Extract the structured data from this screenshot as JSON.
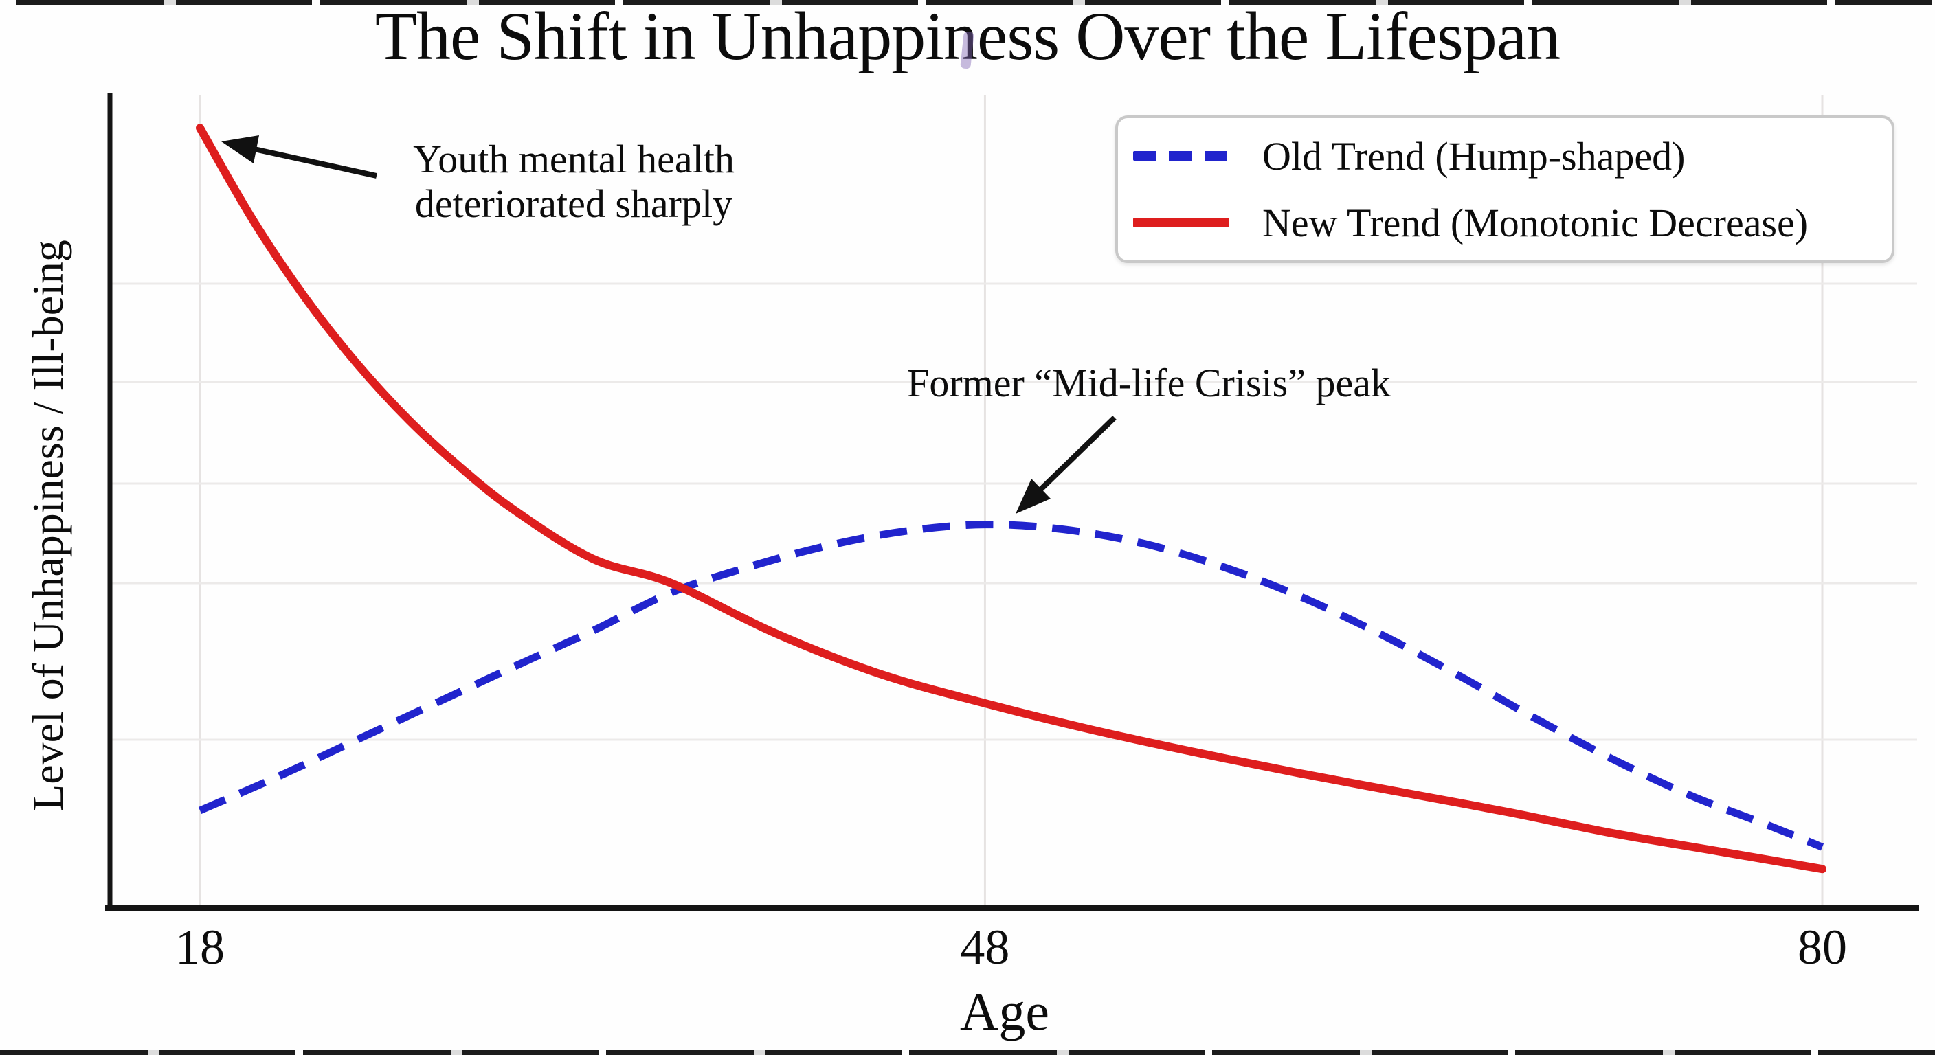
{
  "page": {
    "background": "#fefefe"
  },
  "axes": {
    "x_label": "Age",
    "y_label": "Level of Unhappiness / Ill-being"
  },
  "legend": {
    "items": [
      {
        "label": "Old Trend (Hump-shaped)",
        "color": "#2124cd",
        "line_style": "dashed"
      },
      {
        "label": "New Trend (Monotonic Decrease)",
        "color": "#de1e1e",
        "line_style": "solid"
      }
    ]
  },
  "annotations": [
    {
      "id": "youth",
      "lines": [
        "Youth mental health",
        "deteriorated sharply"
      ]
    },
    {
      "id": "midlife",
      "lines": [
        "Former “Mid-life Crisis” peak"
      ]
    }
  ],
  "chart_data": {
    "type": "line",
    "title": "The Shift in Unhappiness Over the Lifespan",
    "xlabel": "Age",
    "ylabel": "Level of Unhappiness / Ill-being",
    "x_ticks": [
      18,
      48,
      80
    ],
    "xlim": [
      18,
      80
    ],
    "ylim": [
      0,
      1
    ],
    "grid": true,
    "legend_position": "upper right",
    "series": [
      {
        "name": "Old Trend (Hump-shaped)",
        "color": "#2124cd",
        "style": "dashed",
        "points": [
          [
            18,
            0.12
          ],
          [
            21,
            0.162
          ],
          [
            24,
            0.207
          ],
          [
            27,
            0.252
          ],
          [
            30,
            0.297
          ],
          [
            33,
            0.341
          ],
          [
            36,
            0.388
          ],
          [
            39,
            0.42
          ],
          [
            42,
            0.446
          ],
          [
            45,
            0.464
          ],
          [
            48,
            0.472
          ],
          [
            51,
            0.466
          ],
          [
            54,
            0.449
          ],
          [
            57,
            0.421
          ],
          [
            60,
            0.384
          ],
          [
            63,
            0.339
          ],
          [
            66,
            0.288
          ],
          [
            69,
            0.234
          ],
          [
            72,
            0.183
          ],
          [
            75,
            0.138
          ],
          [
            78,
            0.101
          ],
          [
            80,
            0.075
          ]
        ]
      },
      {
        "name": "New Trend (Monotonic Decrease)",
        "color": "#de1e1e",
        "style": "solid",
        "points": [
          [
            18,
            0.96
          ],
          [
            20,
            0.848
          ],
          [
            22,
            0.752
          ],
          [
            24,
            0.67
          ],
          [
            26,
            0.6
          ],
          [
            28,
            0.541
          ],
          [
            30,
            0.49
          ],
          [
            33,
            0.43
          ],
          [
            36,
            0.4
          ],
          [
            40,
            0.338
          ],
          [
            44,
            0.288
          ],
          [
            48,
            0.252
          ],
          [
            52,
            0.22
          ],
          [
            56,
            0.192
          ],
          [
            60,
            0.166
          ],
          [
            64,
            0.142
          ],
          [
            68,
            0.118
          ],
          [
            72,
            0.092
          ],
          [
            76,
            0.07
          ],
          [
            80,
            0.048
          ]
        ]
      }
    ]
  }
}
